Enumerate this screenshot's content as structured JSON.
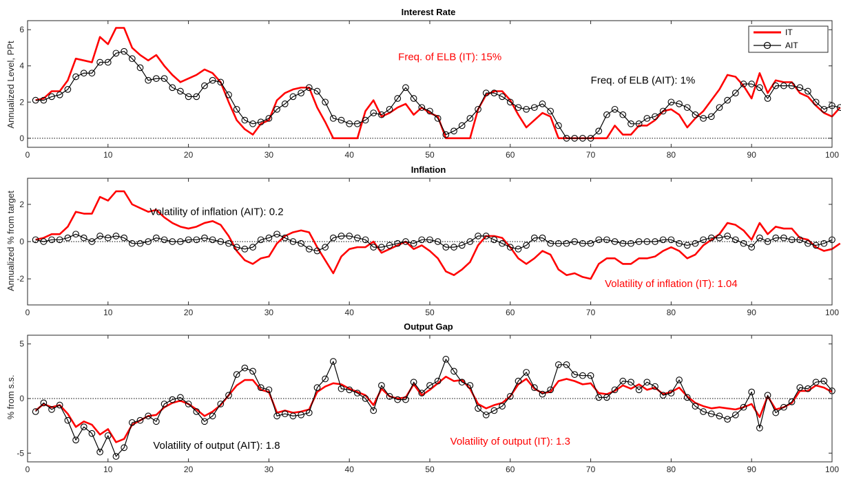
{
  "colors": {
    "it": "#ff0000",
    "ait": "#000000",
    "axis": "#262626"
  },
  "legend": {
    "it_label": "IT",
    "ait_label": "AIT",
    "placement": "top-right of first panel"
  },
  "chart_data": [
    {
      "type": "line",
      "title": "Interest Rate",
      "xlabel": "",
      "ylabel": "Annualized Level, PPt",
      "xlim": [
        0,
        100
      ],
      "ylim": [
        -0.5,
        6.5
      ],
      "xticks": [
        0,
        10,
        20,
        30,
        40,
        50,
        60,
        70,
        80,
        90,
        100
      ],
      "yticks": [
        0,
        2,
        4,
        6
      ],
      "zero_line": true,
      "annotations": [
        {
          "text": "Freq. of ELB (IT): 15%",
          "color": "#ff0000",
          "x": 52.5,
          "y": 4.5
        },
        {
          "text": "Freq. of ELB (AIT): 1%",
          "color": "#000000",
          "x": 76.5,
          "y": 3.2
        }
      ],
      "series": [
        {
          "name": "IT",
          "style": "thick-line",
          "y": [
            2.1,
            2.2,
            2.6,
            2.6,
            3.2,
            4.4,
            4.3,
            4.2,
            5.6,
            5.2,
            6.1,
            6.1,
            5.0,
            4.6,
            4.3,
            4.6,
            4.0,
            3.5,
            3.1,
            3.3,
            3.5,
            3.8,
            3.6,
            3.1,
            2.0,
            1.0,
            0.5,
            0.2,
            0.8,
            1.0,
            2.1,
            2.5,
            2.7,
            2.8,
            2.8,
            1.7,
            0.9,
            0.0,
            0.0,
            0.0,
            0.0,
            1.5,
            2.1,
            1.2,
            1.4,
            1.7,
            1.9,
            1.3,
            1.7,
            1.4,
            1.2,
            0.0,
            0.0,
            0.0,
            0.0,
            1.6,
            2.4,
            2.6,
            2.6,
            2.1,
            1.3,
            0.6,
            1.0,
            1.4,
            1.2,
            0.0,
            0.0,
            0.0,
            0.0,
            0.0,
            0.0,
            0.0,
            0.7,
            0.2,
            0.2,
            0.7,
            0.7,
            1.0,
            1.5,
            1.6,
            1.3,
            0.6,
            1.1,
            1.5,
            2.1,
            2.7,
            3.5,
            3.4,
            2.9,
            2.2,
            3.6,
            2.5,
            3.2,
            3.1,
            3.1,
            2.5,
            2.3,
            1.8,
            1.4,
            1.2,
            1.7
          ]
        },
        {
          "name": "AIT",
          "style": "line-circles",
          "y": [
            2.1,
            2.1,
            2.3,
            2.4,
            2.7,
            3.4,
            3.6,
            3.6,
            4.2,
            4.2,
            4.7,
            4.8,
            4.4,
            3.9,
            3.2,
            3.3,
            3.3,
            2.8,
            2.6,
            2.3,
            2.3,
            2.9,
            3.2,
            3.1,
            2.4,
            1.6,
            1.0,
            0.8,
            0.9,
            1.1,
            1.6,
            1.9,
            2.3,
            2.5,
            2.8,
            2.6,
            2.0,
            1.1,
            1.0,
            0.8,
            0.8,
            1.0,
            1.4,
            1.3,
            1.6,
            2.2,
            2.8,
            2.2,
            1.7,
            1.5,
            1.1,
            0.2,
            0.4,
            0.7,
            1.1,
            1.6,
            2.5,
            2.5,
            2.3,
            2.0,
            1.7,
            1.6,
            1.7,
            1.9,
            1.5,
            0.7,
            0.0,
            0.0,
            0.0,
            0.0,
            0.4,
            1.3,
            1.6,
            1.3,
            0.8,
            0.8,
            1.1,
            1.2,
            1.5,
            2.0,
            1.9,
            1.7,
            1.3,
            1.1,
            1.2,
            1.7,
            2.1,
            2.5,
            3.0,
            3.0,
            2.8,
            2.2,
            2.9,
            2.9,
            2.9,
            2.8,
            2.6,
            2.0,
            1.6,
            1.8,
            1.7
          ]
        }
      ]
    },
    {
      "type": "line",
      "title": "Inflation",
      "xlabel": "",
      "ylabel": "Annualized % from target",
      "xlim": [
        0,
        100
      ],
      "ylim": [
        -3.4,
        3.4
      ],
      "xticks": [
        0,
        10,
        20,
        30,
        40,
        50,
        60,
        70,
        80,
        90,
        100
      ],
      "yticks": [
        -2,
        0,
        2
      ],
      "zero_line": true,
      "annotations": [
        {
          "text": "Volatility of inflation (AIT):  0.2",
          "color": "#000000",
          "x": 23.5,
          "y": 1.6
        },
        {
          "text": "Volatility of inflation (IT): 1.04",
          "color": "#ff0000",
          "x": 80.0,
          "y": -2.25
        }
      ],
      "series": [
        {
          "name": "IT",
          "style": "thick-line",
          "y": [
            0.1,
            0.2,
            0.4,
            0.4,
            0.8,
            1.6,
            1.5,
            1.5,
            2.4,
            2.2,
            2.7,
            2.7,
            2.0,
            1.8,
            1.6,
            1.7,
            1.3,
            1.0,
            0.8,
            0.7,
            0.8,
            1.0,
            1.1,
            0.9,
            0.3,
            -0.5,
            -1.0,
            -1.2,
            -0.9,
            -0.8,
            -0.1,
            0.3,
            0.5,
            0.6,
            0.5,
            -0.3,
            -1.0,
            -1.7,
            -0.8,
            -0.4,
            -0.3,
            -0.3,
            0.0,
            -0.6,
            -0.4,
            -0.2,
            0.0,
            -0.4,
            -0.2,
            -0.5,
            -0.9,
            -1.6,
            -1.8,
            -1.5,
            -1.1,
            -0.2,
            0.3,
            0.3,
            0.2,
            -0.3,
            -0.9,
            -1.2,
            -0.9,
            -0.5,
            -0.7,
            -1.5,
            -1.8,
            -1.7,
            -1.9,
            -2.0,
            -1.2,
            -0.9,
            -0.9,
            -1.2,
            -1.2,
            -0.9,
            -0.9,
            -0.8,
            -0.5,
            -0.3,
            -0.5,
            -0.9,
            -0.7,
            -0.2,
            0.1,
            0.4,
            1.0,
            0.9,
            0.6,
            0.1,
            1.0,
            0.4,
            0.8,
            0.7,
            0.7,
            0.2,
            0.1,
            -0.3,
            -0.5,
            -0.4,
            -0.1
          ]
        },
        {
          "name": "AIT",
          "style": "line-circles",
          "y": [
            0.1,
            0.0,
            0.1,
            0.1,
            0.2,
            0.4,
            0.2,
            0.0,
            0.3,
            0.2,
            0.3,
            0.2,
            -0.1,
            -0.1,
            0.0,
            0.2,
            0.1,
            0.0,
            0.0,
            0.1,
            0.1,
            0.2,
            0.1,
            0.0,
            -0.1,
            -0.3,
            -0.4,
            -0.3,
            0.1,
            0.2,
            0.4,
            0.2,
            0.0,
            -0.1,
            -0.4,
            -0.5,
            -0.3,
            0.2,
            0.3,
            0.3,
            0.2,
            0.1,
            -0.3,
            -0.3,
            -0.2,
            -0.1,
            0.0,
            -0.1,
            0.1,
            0.1,
            0.0,
            -0.3,
            -0.3,
            -0.2,
            0.0,
            0.3,
            0.3,
            0.1,
            -0.1,
            -0.3,
            -0.4,
            -0.2,
            0.2,
            0.2,
            -0.1,
            -0.1,
            -0.1,
            0.0,
            -0.1,
            -0.1,
            0.1,
            0.1,
            0.0,
            -0.1,
            -0.1,
            0.0,
            0.0,
            0.0,
            0.1,
            0.1,
            -0.1,
            -0.2,
            -0.1,
            0.1,
            0.2,
            0.2,
            0.3,
            0.1,
            -0.1,
            -0.3,
            0.2,
            0.0,
            0.2,
            0.2,
            0.1,
            0.1,
            -0.1,
            -0.2,
            -0.1,
            0.1
          ]
        }
      ]
    },
    {
      "type": "line",
      "title": "Output Gap",
      "xlabel": "",
      "ylabel": "% from s.s.",
      "xlim": [
        0,
        100
      ],
      "ylim": [
        -5.8,
        5.8
      ],
      "xticks": [
        0,
        10,
        20,
        30,
        40,
        50,
        60,
        70,
        80,
        90,
        100
      ],
      "yticks": [
        -5,
        0,
        5
      ],
      "zero_line": true,
      "annotations": [
        {
          "text": "Volatility of output (AIT):  1.8",
          "color": "#000000",
          "x": 23.5,
          "y": -4.3
        },
        {
          "text": "Volatility of output (IT): 1.3",
          "color": "#ff0000",
          "x": 60.0,
          "y": -3.9
        }
      ],
      "series": [
        {
          "name": "IT",
          "style": "thick-line",
          "y": [
            -1.1,
            -0.5,
            -0.8,
            -0.6,
            -1.4,
            -2.6,
            -2.1,
            -2.4,
            -3.3,
            -2.8,
            -4.0,
            -3.7,
            -2.4,
            -2.0,
            -1.6,
            -1.5,
            -0.8,
            -0.4,
            -0.2,
            -0.5,
            -1.0,
            -1.6,
            -1.2,
            -0.6,
            0.3,
            1.2,
            1.7,
            1.7,
            0.8,
            0.6,
            -1.3,
            -1.1,
            -1.3,
            -1.2,
            -1.0,
            0.6,
            1.1,
            1.4,
            1.3,
            0.9,
            0.6,
            0.3,
            -0.6,
            0.9,
            0.2,
            0.0,
            0.1,
            1.3,
            0.3,
            0.8,
            1.4,
            2.0,
            1.6,
            1.7,
            0.9,
            -0.5,
            -0.9,
            -0.6,
            -0.4,
            0.2,
            1.3,
            1.8,
            0.9,
            0.5,
            0.6,
            1.6,
            1.8,
            1.6,
            1.3,
            1.4,
            0.5,
            0.4,
            0.7,
            1.2,
            0.9,
            1.3,
            0.8,
            1.0,
            0.4,
            0.6,
            1.0,
            0.2,
            -0.4,
            -0.7,
            -0.9,
            -0.8,
            -0.9,
            -1.0,
            -0.8,
            -0.5,
            -1.7,
            0.2,
            -1.0,
            -0.8,
            -0.4,
            0.7,
            0.7,
            1.2,
            1.0,
            0.6
          ]
        },
        {
          "name": "AIT",
          "style": "line-circles",
          "y": [
            -1.2,
            -0.4,
            -1.0,
            -0.6,
            -2.0,
            -3.8,
            -2.6,
            -3.2,
            -4.9,
            -3.4,
            -5.3,
            -4.5,
            -2.2,
            -2.0,
            -1.6,
            -2.1,
            -0.5,
            -0.1,
            0.1,
            -0.5,
            -1.2,
            -2.1,
            -1.6,
            -0.5,
            0.3,
            2.2,
            2.8,
            2.5,
            1.0,
            0.8,
            -1.6,
            -1.4,
            -1.6,
            -1.5,
            -1.3,
            1.0,
            1.8,
            3.4,
            0.9,
            0.8,
            0.5,
            0.0,
            -1.1,
            1.2,
            0.2,
            -0.1,
            -0.1,
            1.5,
            0.5,
            1.2,
            1.6,
            3.6,
            2.5,
            1.5,
            1.2,
            -0.9,
            -1.5,
            -1.1,
            -0.7,
            0.2,
            1.6,
            2.4,
            1.0,
            0.4,
            0.8,
            3.1,
            3.1,
            2.2,
            2.1,
            2.1,
            0.1,
            0.1,
            0.8,
            1.6,
            1.5,
            0.8,
            1.5,
            1.1,
            0.3,
            0.5,
            1.7,
            0.1,
            -0.7,
            -1.2,
            -1.4,
            -1.6,
            -1.9,
            -1.5,
            -0.8,
            0.6,
            -2.7,
            0.3,
            -1.3,
            -0.8,
            -0.3,
            1.0,
            0.9,
            1.5,
            1.6,
            0.7
          ]
        }
      ]
    }
  ]
}
